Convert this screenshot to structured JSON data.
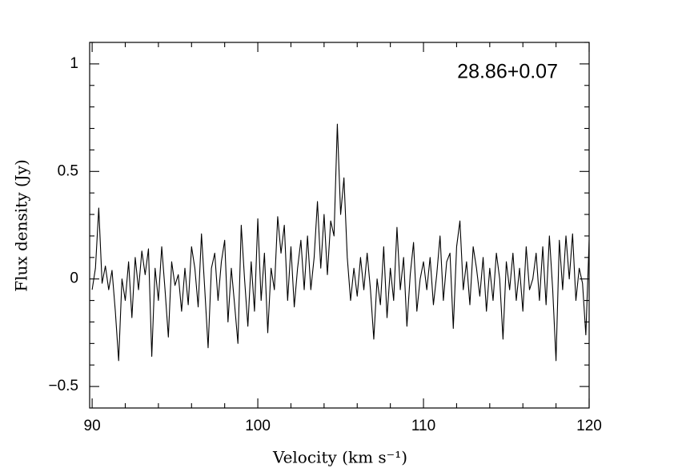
{
  "chart_data": {
    "type": "line",
    "annotation": "28.86+0.07",
    "x_label": "Velocity (km s⁻¹)",
    "y_label": "Flux density (Jy)",
    "xlim": [
      89.85,
      120
    ],
    "ylim": [
      -0.6,
      1.1
    ],
    "xticks": [
      90,
      100,
      110,
      120
    ],
    "yticks": [
      {
        "value": -0.5,
        "label": "−0.5"
      },
      0,
      0.5,
      1
    ],
    "xticks_minor": [
      92,
      94,
      96,
      98,
      102,
      104,
      106,
      108,
      112,
      114,
      116,
      118
    ],
    "yticks_minor": [
      -0.4,
      -0.3,
      -0.2,
      -0.1,
      0.1,
      0.2,
      0.3,
      0.4,
      0.6,
      0.7,
      0.8,
      0.9,
      1.1
    ],
    "color": "#000000",
    "x": [
      90.0,
      90.2,
      90.4,
      90.6,
      90.8,
      91.0,
      91.2,
      91.4,
      91.6,
      91.8,
      92.0,
      92.2,
      92.4,
      92.6,
      92.8,
      93.0,
      93.2,
      93.4,
      93.6,
      93.8,
      94.0,
      94.2,
      94.4,
      94.6,
      94.8,
      95.0,
      95.2,
      95.4,
      95.6,
      95.8,
      96.0,
      96.2,
      96.4,
      96.6,
      96.8,
      97.0,
      97.2,
      97.4,
      97.6,
      97.8,
      98.0,
      98.2,
      98.4,
      98.6,
      98.8,
      99.0,
      99.2,
      99.4,
      99.6,
      99.8,
      100.0,
      100.2,
      100.4,
      100.6,
      100.8,
      101.0,
      101.2,
      101.4,
      101.6,
      101.8,
      102.0,
      102.2,
      102.4,
      102.6,
      102.8,
      103.0,
      103.2,
      103.4,
      103.6,
      103.8,
      104.0,
      104.2,
      104.4,
      104.6,
      104.8,
      105.0,
      105.2,
      105.4,
      105.6,
      105.8,
      106.0,
      106.2,
      106.4,
      106.6,
      106.8,
      107.0,
      107.2,
      107.4,
      107.6,
      107.8,
      108.0,
      108.2,
      108.4,
      108.6,
      108.8,
      109.0,
      109.2,
      109.4,
      109.6,
      109.8,
      110.0,
      110.2,
      110.4,
      110.6,
      110.8,
      111.0,
      111.2,
      111.4,
      111.6,
      111.8,
      112.0,
      112.2,
      112.4,
      112.6,
      112.8,
      113.0,
      113.2,
      113.4,
      113.6,
      113.8,
      114.0,
      114.2,
      114.4,
      114.6,
      114.8,
      115.0,
      115.2,
      115.4,
      115.6,
      115.8,
      116.0,
      116.2,
      116.4,
      116.6,
      116.8,
      117.0,
      117.2,
      117.4,
      117.6,
      117.8,
      118.0,
      118.2,
      118.4,
      118.6,
      118.8,
      119.0,
      119.2,
      119.4,
      119.6,
      119.8,
      120.0
    ],
    "values": [
      -0.05,
      0.05,
      0.33,
      -0.02,
      0.06,
      -0.05,
      0.04,
      -0.15,
      -0.38,
      0.0,
      -0.1,
      0.08,
      -0.18,
      0.1,
      -0.05,
      0.13,
      0.02,
      0.14,
      -0.36,
      0.05,
      -0.1,
      0.15,
      -0.05,
      -0.27,
      0.08,
      -0.03,
      0.02,
      -0.15,
      0.05,
      -0.12,
      0.15,
      0.05,
      -0.13,
      0.21,
      -0.05,
      -0.32,
      0.05,
      0.12,
      -0.1,
      0.08,
      0.18,
      -0.2,
      0.05,
      -0.12,
      -0.3,
      0.25,
      0.0,
      -0.22,
      0.08,
      -0.15,
      0.28,
      -0.1,
      0.12,
      -0.25,
      0.05,
      -0.05,
      0.29,
      0.12,
      0.25,
      -0.1,
      0.15,
      -0.13,
      0.05,
      0.18,
      -0.05,
      0.2,
      -0.05,
      0.1,
      0.36,
      0.05,
      0.3,
      0.02,
      0.27,
      0.2,
      0.72,
      0.3,
      0.47,
      0.1,
      -0.1,
      0.05,
      -0.08,
      0.1,
      -0.05,
      0.12,
      -0.05,
      -0.28,
      0.0,
      -0.12,
      0.15,
      -0.18,
      0.05,
      -0.1,
      0.24,
      -0.05,
      0.1,
      -0.22,
      0.02,
      0.17,
      -0.15,
      0.0,
      0.08,
      -0.05,
      0.1,
      -0.12,
      0.02,
      0.2,
      -0.1,
      0.08,
      0.12,
      -0.23,
      0.15,
      0.27,
      -0.05,
      0.08,
      -0.12,
      0.15,
      0.05,
      -0.08,
      0.1,
      -0.15,
      0.05,
      -0.1,
      0.12,
      0.0,
      -0.28,
      0.08,
      -0.05,
      0.12,
      -0.1,
      0.05,
      -0.15,
      0.15,
      -0.05,
      0.0,
      0.12,
      -0.1,
      0.15,
      -0.12,
      0.2,
      -0.05,
      -0.38,
      0.18,
      -0.05,
      0.2,
      0.0,
      0.21,
      -0.1,
      0.05,
      -0.02,
      -0.26,
      0.18
    ]
  }
}
